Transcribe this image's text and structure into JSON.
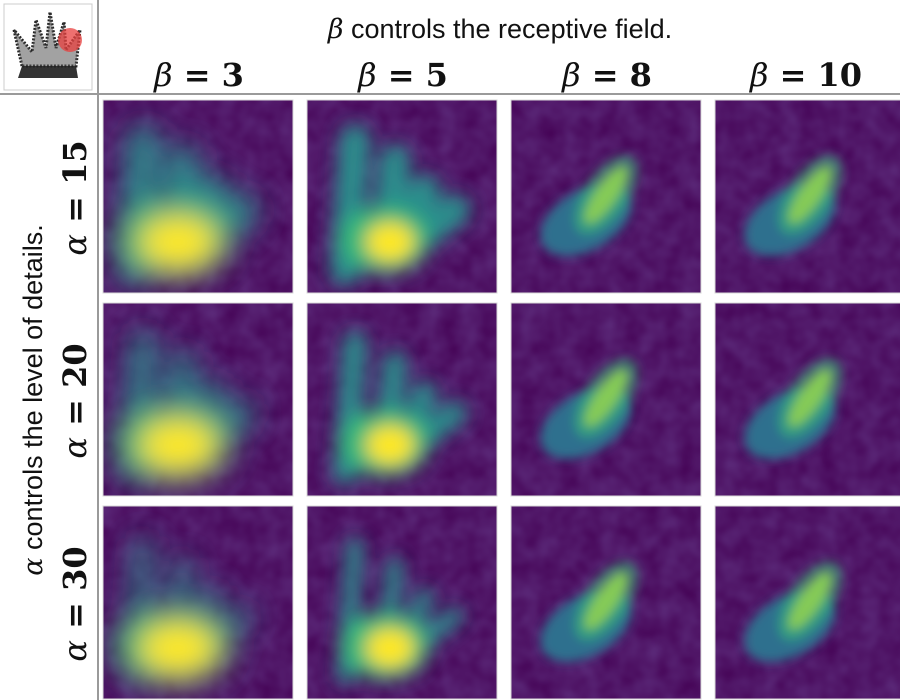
{
  "header": {
    "beta_symbol": "β",
    "beta_caption": " controls the receptive field."
  },
  "sidebar": {
    "alpha_symbol": "α",
    "alpha_caption": " controls the level of details."
  },
  "columns": [
    {
      "symbol": "β",
      "eq": " = ",
      "value": "3"
    },
    {
      "symbol": "β",
      "eq": " = ",
      "value": "5"
    },
    {
      "symbol": "β",
      "eq": " = ",
      "value": "8"
    },
    {
      "symbol": "β",
      "eq": " = ",
      "value": "10"
    }
  ],
  "rows": [
    {
      "symbol": "α",
      "eq": " = ",
      "value": "15"
    },
    {
      "symbol": "α",
      "eq": " = ",
      "value": "20"
    },
    {
      "symbol": "α",
      "eq": " = ",
      "value": "30"
    }
  ],
  "colors": {
    "viridis_low": "#440154",
    "viridis_mid": "#21918c",
    "viridis_high": "#fde725",
    "highlight": "#e8403f"
  }
}
